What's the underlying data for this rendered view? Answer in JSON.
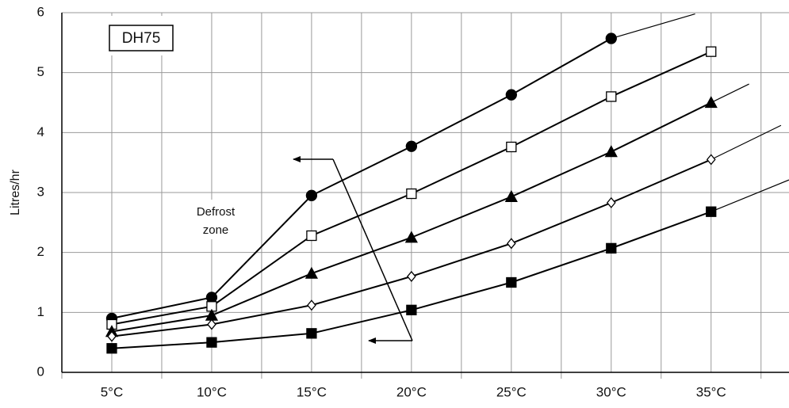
{
  "chart_data": {
    "type": "line",
    "ylabel": "Litres/hr",
    "model_label": "DH75",
    "zone_label": [
      "Defrost",
      "zone"
    ],
    "xlim": [
      2.5,
      38.9
    ],
    "xticks": [
      {
        "value": 5,
        "label": "5°C"
      },
      {
        "value": 10,
        "label": "10°C"
      },
      {
        "value": 15,
        "label": "15°C"
      },
      {
        "value": 20,
        "label": "20°C"
      },
      {
        "value": 25,
        "label": "25°C"
      },
      {
        "value": 30,
        "label": "30°C"
      },
      {
        "value": 35,
        "label": "35°C"
      }
    ],
    "minor_xticks": [
      2.5,
      7.5,
      12.5,
      17.5,
      22.5,
      27.5,
      32.5,
      37.5
    ],
    "ylim": [
      0,
      6
    ],
    "yticks": [
      0,
      1,
      2,
      3,
      4,
      5,
      6
    ],
    "grid": true,
    "series": [
      {
        "marker": "circle-filled",
        "color": "#000000",
        "x": [
          5,
          10,
          15,
          20,
          25,
          30
        ],
        "values": [
          0.9,
          1.25,
          2.95,
          3.77,
          4.63,
          5.57
        ],
        "trend": {
          "x": 34.2,
          "value": 5.98
        }
      },
      {
        "marker": "square-open",
        "color": "#000000",
        "x": [
          5,
          10,
          15,
          20,
          25,
          30,
          35
        ],
        "values": [
          0.8,
          1.1,
          2.28,
          2.98,
          3.76,
          4.6,
          5.35
        ]
      },
      {
        "marker": "triangle-filled",
        "color": "#000000",
        "x": [
          5,
          10,
          15,
          20,
          25,
          30,
          35
        ],
        "values": [
          0.68,
          0.95,
          1.65,
          2.25,
          2.93,
          3.68,
          4.5
        ],
        "trend": {
          "x": 36.9,
          "value": 4.81
        }
      },
      {
        "marker": "diamond-open",
        "color": "#000000",
        "x": [
          5,
          10,
          15,
          20,
          25,
          30,
          35
        ],
        "values": [
          0.6,
          0.8,
          1.12,
          1.6,
          2.15,
          2.83,
          3.55
        ],
        "trend": {
          "x": 38.5,
          "value": 4.12
        }
      },
      {
        "marker": "square-filled",
        "color": "#000000",
        "x": [
          5,
          10,
          15,
          20,
          25,
          30,
          35
        ],
        "values": [
          0.4,
          0.5,
          0.65,
          1.04,
          1.5,
          2.07,
          2.68
        ],
        "trend": {
          "x": 38.9,
          "value": 3.21
        }
      }
    ]
  }
}
